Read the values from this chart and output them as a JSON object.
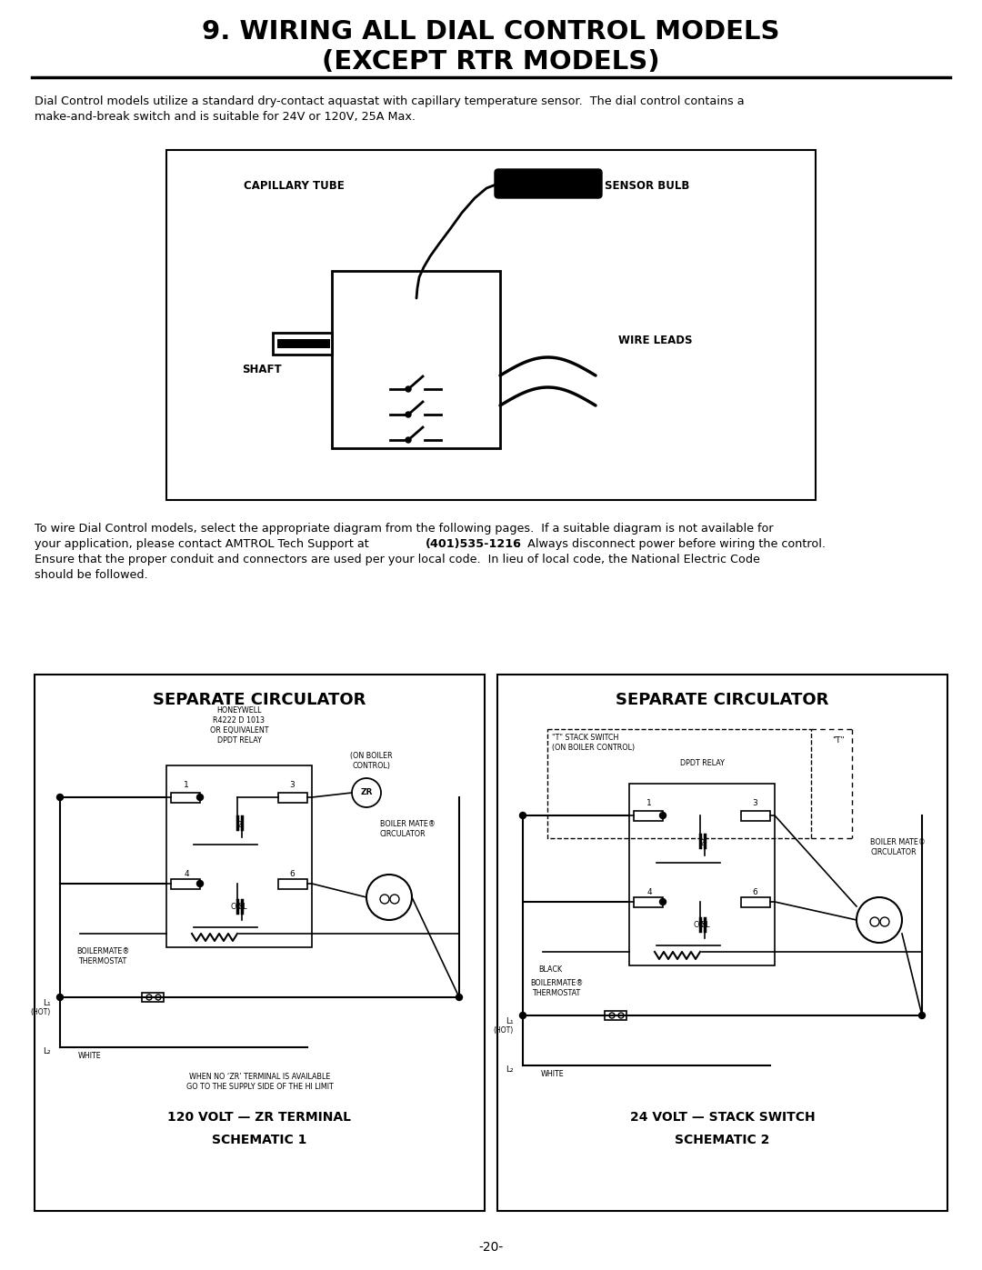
{
  "title_line1": "9. WIRING ALL DIAL CONTROL MODELS",
  "title_line2": "(EXCEPT RTR MODELS)",
  "body_text1": "Dial Control models utilize a standard dry-contact aquastat with capillary temperature sensor.  The dial control contains a",
  "body_text2": "make-and-break switch and is suitable for 24V or 120V, 25A Max.",
  "body_text3": "To wire Dial Control models, select the appropriate diagram from the following pages.  If a suitable diagram is not available for",
  "body_text4a": "your application, please contact AMTROL Tech Support at ",
  "body_text4b": "(401)535-1216",
  "body_text4c": ".  Always disconnect power before wiring the control.",
  "body_text5": "Ensure that the proper conduit and connectors are used per your local code.  In lieu of local code, the National Electric Code",
  "body_text6": "should be followed.",
  "schematic1_title": "SEPARATE CIRCULATOR",
  "schematic1_sub1": "120 VOLT — ZR TERMINAL",
  "schematic1_sub2": "SCHEMATIC 1",
  "schematic2_title": "SEPARATE CIRCULATOR",
  "schematic2_sub1": "24 VOLT — STACK SWITCH",
  "schematic2_sub2": "SCHEMATIC 2",
  "page_number": "-20-",
  "bg_color": "#ffffff",
  "text_color": "#000000"
}
